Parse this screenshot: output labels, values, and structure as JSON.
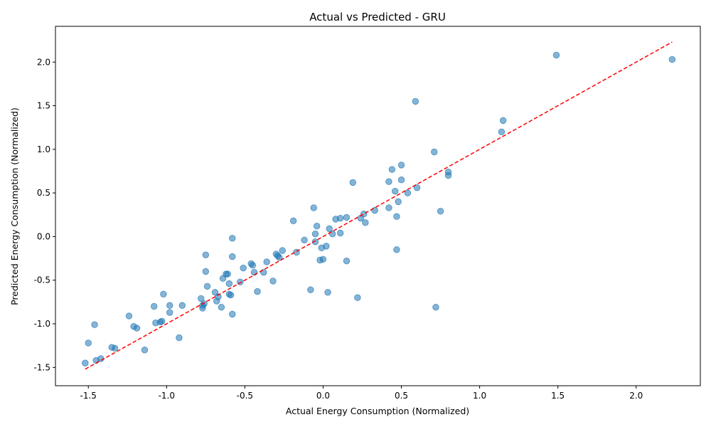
{
  "chart_data": {
    "type": "scatter",
    "title": "Actual vs Predicted - GRU",
    "xlabel": "Actual Energy Consumption (Normalized)",
    "ylabel": "Predicted Energy Consumption (Normalized)",
    "xlim": [
      -1.71,
      2.41
    ],
    "ylim": [
      -1.71,
      2.41
    ],
    "xticks": [
      "-1.5",
      "-1.0",
      "-0.5",
      "0.0",
      "0.5",
      "1.0",
      "1.5",
      "2.0"
    ],
    "xtick_values": [
      -1.5,
      -1.0,
      -0.5,
      0.0,
      0.5,
      1.0,
      1.5,
      2.0
    ],
    "yticks": [
      "-1.5",
      "-1.0",
      "-0.5",
      "0.0",
      "0.5",
      "1.0",
      "1.5",
      "2.0"
    ],
    "ytick_values": [
      -1.5,
      -1.0,
      -0.5,
      0.0,
      0.5,
      1.0,
      1.5,
      2.0
    ],
    "grid": false,
    "point_color": "#1f77b4",
    "line_color": "#ff0000",
    "reference_line": {
      "x": [
        -1.52,
        2.23
      ],
      "y": [
        -1.52,
        2.23
      ],
      "style": "dashed"
    },
    "points": [
      {
        "x": -1.52,
        "y": -1.45
      },
      {
        "x": -1.5,
        "y": -1.22
      },
      {
        "x": -1.45,
        "y": -1.42
      },
      {
        "x": -1.46,
        "y": -1.01
      },
      {
        "x": -1.42,
        "y": -1.4
      },
      {
        "x": -1.35,
        "y": -1.27
      },
      {
        "x": -1.33,
        "y": -1.28
      },
      {
        "x": -1.24,
        "y": -0.91
      },
      {
        "x": -1.21,
        "y": -1.03
      },
      {
        "x": -1.19,
        "y": -1.05
      },
      {
        "x": -1.14,
        "y": -1.3
      },
      {
        "x": -1.08,
        "y": -0.8
      },
      {
        "x": -1.07,
        "y": -0.99
      },
      {
        "x": -1.04,
        "y": -0.98
      },
      {
        "x": -1.03,
        "y": -0.97
      },
      {
        "x": -1.02,
        "y": -0.66
      },
      {
        "x": -0.98,
        "y": -0.87
      },
      {
        "x": -0.98,
        "y": -0.79
      },
      {
        "x": -0.92,
        "y": -1.16
      },
      {
        "x": -0.9,
        "y": -0.79
      },
      {
        "x": -0.78,
        "y": -0.71
      },
      {
        "x": -0.77,
        "y": -0.82
      },
      {
        "x": -0.77,
        "y": -0.79
      },
      {
        "x": -0.76,
        "y": -0.77
      },
      {
        "x": -0.75,
        "y": -0.4
      },
      {
        "x": -0.75,
        "y": -0.21
      },
      {
        "x": -0.74,
        "y": -0.57
      },
      {
        "x": -0.69,
        "y": -0.64
      },
      {
        "x": -0.68,
        "y": -0.74
      },
      {
        "x": -0.67,
        "y": -0.69
      },
      {
        "x": -0.65,
        "y": -0.81
      },
      {
        "x": -0.64,
        "y": -0.48
      },
      {
        "x": -0.62,
        "y": -0.43
      },
      {
        "x": -0.61,
        "y": -0.43
      },
      {
        "x": -0.6,
        "y": -0.54
      },
      {
        "x": -0.6,
        "y": -0.66
      },
      {
        "x": -0.59,
        "y": -0.67
      },
      {
        "x": -0.58,
        "y": -0.89
      },
      {
        "x": -0.58,
        "y": -0.23
      },
      {
        "x": -0.58,
        "y": -0.02
      },
      {
        "x": -0.53,
        "y": -0.52
      },
      {
        "x": -0.51,
        "y": -0.36
      },
      {
        "x": -0.46,
        "y": -0.31
      },
      {
        "x": -0.45,
        "y": -0.33
      },
      {
        "x": -0.44,
        "y": -0.41
      },
      {
        "x": -0.42,
        "y": -0.63
      },
      {
        "x": -0.38,
        "y": -0.41
      },
      {
        "x": -0.36,
        "y": -0.29
      },
      {
        "x": -0.32,
        "y": -0.51
      },
      {
        "x": -0.3,
        "y": -0.2
      },
      {
        "x": -0.29,
        "y": -0.22
      },
      {
        "x": -0.28,
        "y": -0.24
      },
      {
        "x": -0.26,
        "y": -0.16
      },
      {
        "x": -0.19,
        "y": 0.18
      },
      {
        "x": -0.17,
        "y": -0.18
      },
      {
        "x": -0.12,
        "y": -0.04
      },
      {
        "x": -0.08,
        "y": -0.61
      },
      {
        "x": -0.06,
        "y": 0.33
      },
      {
        "x": -0.05,
        "y": 0.03
      },
      {
        "x": -0.05,
        "y": -0.06
      },
      {
        "x": -0.04,
        "y": 0.12
      },
      {
        "x": -0.02,
        "y": -0.27
      },
      {
        "x": -0.01,
        "y": -0.13
      },
      {
        "x": 0.0,
        "y": -0.26
      },
      {
        "x": 0.02,
        "y": -0.11
      },
      {
        "x": 0.03,
        "y": -0.64
      },
      {
        "x": 0.04,
        "y": 0.09
      },
      {
        "x": 0.06,
        "y": 0.03
      },
      {
        "x": 0.08,
        "y": 0.2
      },
      {
        "x": 0.11,
        "y": 0.04
      },
      {
        "x": 0.11,
        "y": 0.21
      },
      {
        "x": 0.15,
        "y": 0.22
      },
      {
        "x": 0.15,
        "y": -0.28
      },
      {
        "x": 0.19,
        "y": 0.62
      },
      {
        "x": 0.22,
        "y": -0.7
      },
      {
        "x": 0.24,
        "y": 0.21
      },
      {
        "x": 0.26,
        "y": 0.26
      },
      {
        "x": 0.27,
        "y": 0.16
      },
      {
        "x": 0.33,
        "y": 0.3
      },
      {
        "x": 0.42,
        "y": 0.33
      },
      {
        "x": 0.42,
        "y": 0.63
      },
      {
        "x": 0.44,
        "y": 0.77
      },
      {
        "x": 0.46,
        "y": 0.52
      },
      {
        "x": 0.47,
        "y": 0.23
      },
      {
        "x": 0.47,
        "y": -0.15
      },
      {
        "x": 0.48,
        "y": 0.4
      },
      {
        "x": 0.5,
        "y": 0.82
      },
      {
        "x": 0.5,
        "y": 0.65
      },
      {
        "x": 0.54,
        "y": 0.5
      },
      {
        "x": 0.59,
        "y": 1.55
      },
      {
        "x": 0.6,
        "y": 0.56
      },
      {
        "x": 0.71,
        "y": 0.97
      },
      {
        "x": 0.72,
        "y": -0.81
      },
      {
        "x": 0.75,
        "y": 0.29
      },
      {
        "x": 0.8,
        "y": 0.74
      },
      {
        "x": 0.8,
        "y": 0.7
      },
      {
        "x": 1.14,
        "y": 1.2
      },
      {
        "x": 1.15,
        "y": 1.33
      },
      {
        "x": 1.49,
        "y": 2.08
      },
      {
        "x": 2.23,
        "y": 2.03
      }
    ]
  }
}
